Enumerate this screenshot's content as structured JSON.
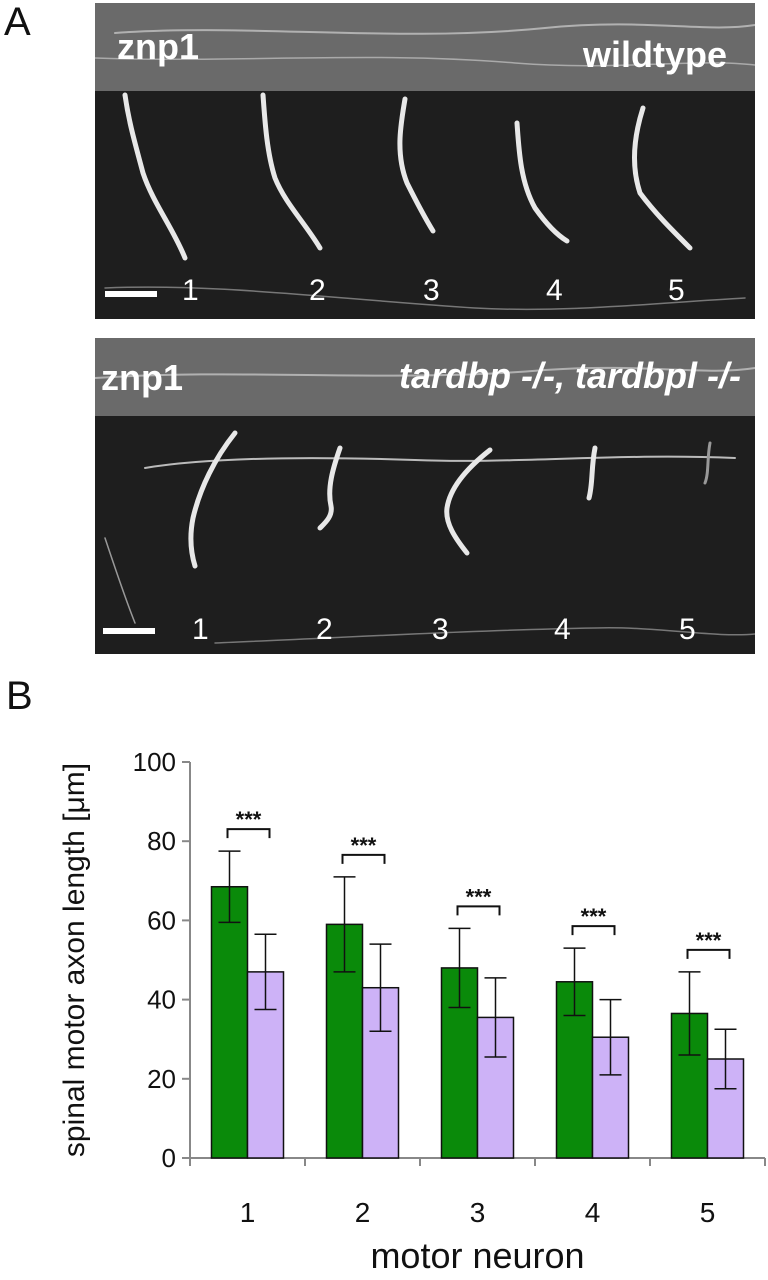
{
  "panel_a": {
    "letter": "A",
    "images": [
      {
        "stain": "znp1",
        "genotype": "wildtype",
        "genotype_italic": false,
        "neuron_numbers": [
          "1",
          "2",
          "3",
          "4",
          "5"
        ]
      },
      {
        "stain": "znp1",
        "genotype": "tardbp -/-, tardbpl -/-",
        "genotype_italic": true,
        "neuron_numbers": [
          "1",
          "2",
          "3",
          "4",
          "5"
        ]
      }
    ]
  },
  "panel_b": {
    "letter": "B"
  },
  "chart_data": {
    "type": "bar",
    "ylabel": "spinal motor axon length [μm]",
    "xlabel": "motor neuron",
    "ylim": [
      0,
      100
    ],
    "yticks": [
      0,
      20,
      40,
      60,
      80,
      100
    ],
    "grid": false,
    "categories": [
      "1",
      "2",
      "3",
      "4",
      "5"
    ],
    "series": [
      {
        "color": "#0a8a0a",
        "values": [
          68.5,
          59,
          48,
          44.5,
          36.5
        ],
        "errors": [
          9,
          12,
          10,
          8.5,
          10.5
        ]
      },
      {
        "color": "#cdb2f7",
        "values": [
          47,
          43,
          35.5,
          30.5,
          25
        ],
        "errors": [
          9.5,
          11,
          10,
          9.5,
          7.5
        ]
      }
    ],
    "significance": [
      "***",
      "***",
      "***",
      "***",
      "***"
    ]
  }
}
